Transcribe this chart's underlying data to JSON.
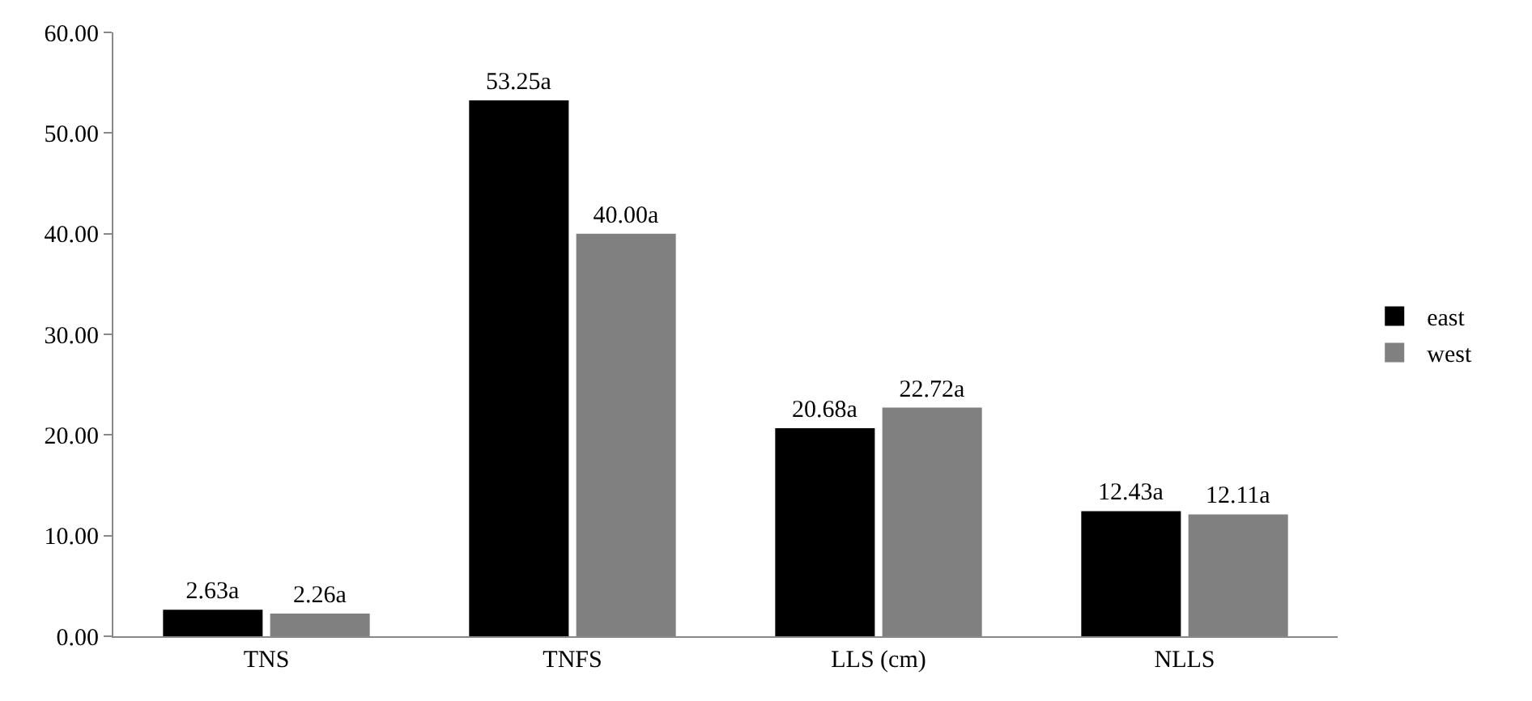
{
  "chart_data": {
    "type": "bar",
    "categories": [
      "TNS",
      "TNFS",
      "LLS (cm)",
      "NLLS"
    ],
    "series": [
      {
        "name": "east",
        "color": "#000000",
        "values": [
          2.63,
          53.25,
          20.68,
          12.43
        ],
        "value_labels": [
          "2.63a",
          "53.25a",
          "20.68a",
          "12.43a"
        ]
      },
      {
        "name": "west",
        "color": "#808080",
        "values": [
          2.26,
          40.0,
          22.72,
          12.11
        ],
        "value_labels": [
          "2.26a",
          "40.00a",
          "22.72a",
          "12.11a"
        ]
      }
    ],
    "ylim": [
      0,
      60
    ],
    "yticks": [
      {
        "value": 0,
        "label": "0.00"
      },
      {
        "value": 10,
        "label": "10.00"
      },
      {
        "value": 20,
        "label": "20.00"
      },
      {
        "value": 30,
        "label": "30.00"
      },
      {
        "value": 40,
        "label": "40.00"
      },
      {
        "value": 50,
        "label": "50.00"
      },
      {
        "value": 60,
        "label": "60.00"
      }
    ],
    "legend": "right"
  }
}
